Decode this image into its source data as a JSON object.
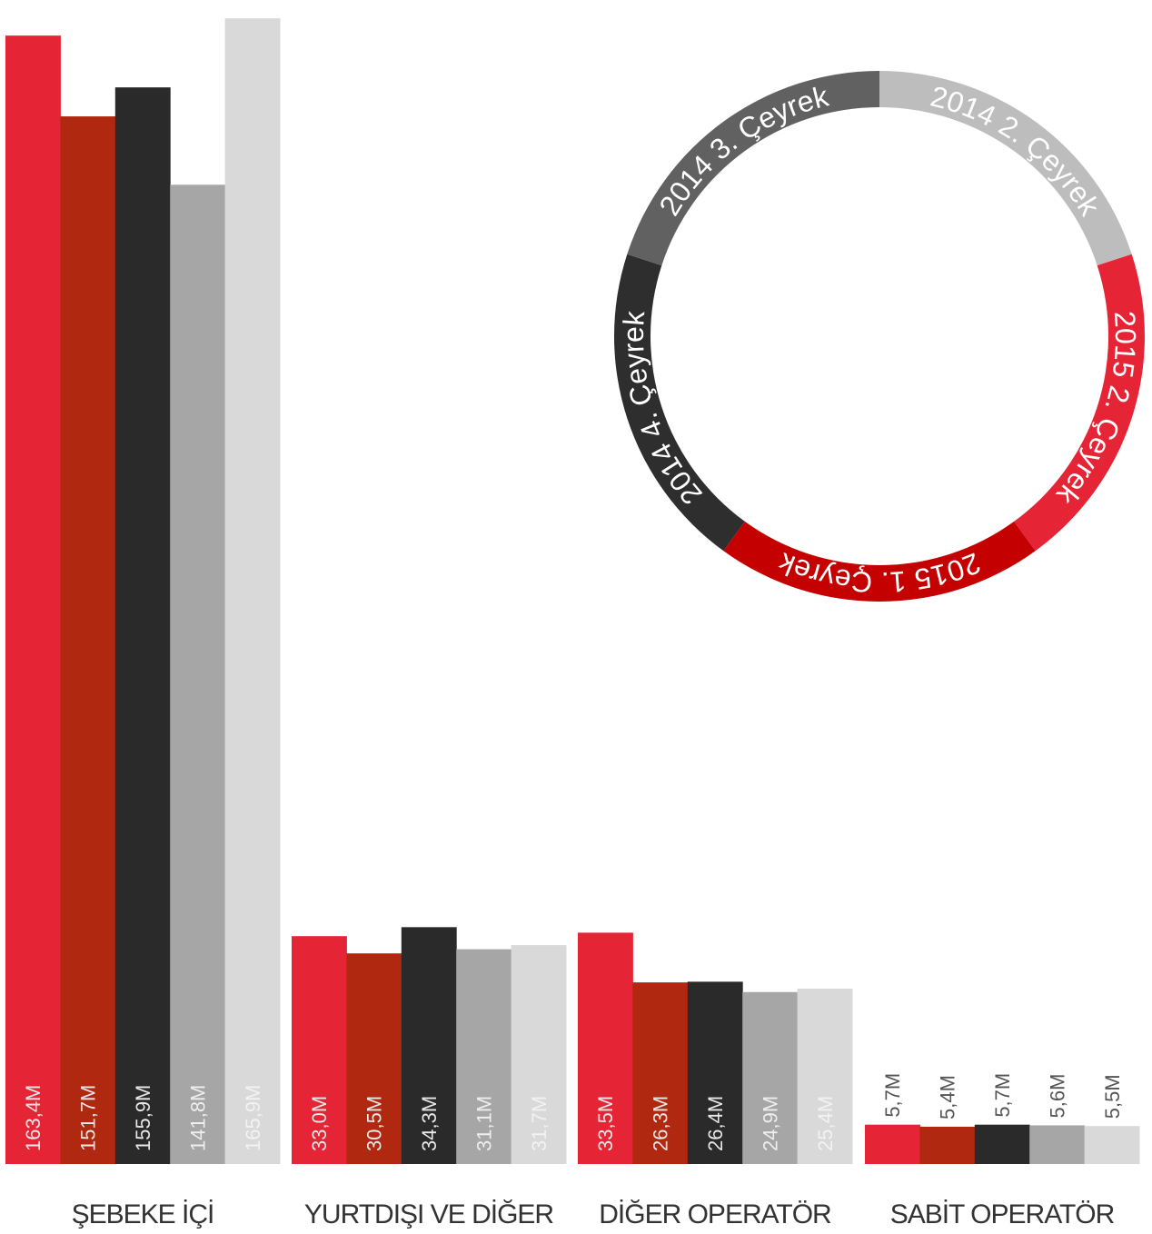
{
  "chart_data": [
    {
      "type": "bar",
      "categories": [
        "ŞEBEKE İÇİ",
        "YURTDIŞI VE DİĞER",
        "DİĞER OPERATÖR",
        "SABİT OPERATÖR"
      ],
      "series": [
        {
          "name": "2015 2. Çeyrek",
          "color": "#e52535",
          "values": [
            163.4,
            33.0,
            33.5,
            5.7
          ],
          "labels": [
            "163,4M",
            "33,0M",
            "33,5M",
            "5,7M"
          ]
        },
        {
          "name": "2015 1. Çeyrek",
          "color": "#b0280f",
          "values": [
            151.7,
            30.5,
            26.3,
            5.4
          ],
          "labels": [
            "151,7M",
            "30,5M",
            "26,3M",
            "5,4M"
          ]
        },
        {
          "name": "2014 4. Çeyrek",
          "color": "#2a2a2a",
          "values": [
            155.9,
            34.3,
            26.4,
            5.7
          ],
          "labels": [
            "155,9M",
            "34,3M",
            "26,4M",
            "5,7M"
          ]
        },
        {
          "name": "2014 3. Çeyrek",
          "color": "#a6a6a6",
          "values": [
            141.8,
            31.1,
            24.9,
            5.6
          ],
          "labels": [
            "141,8M",
            "31,1M",
            "24,9M",
            "5,6M"
          ]
        },
        {
          "name": "2014 2. Çeyrek",
          "color": "#d9d9d9",
          "values": [
            165.9,
            31.7,
            25.4,
            5.5
          ],
          "labels": [
            "165,9M",
            "31,7M",
            "25,4M",
            "5,5M"
          ]
        }
      ],
      "grid": false,
      "legend": "ring (top-right)"
    },
    {
      "type": "pie",
      "variant": "ring-legend",
      "slices": [
        {
          "label": "2014 2. Çeyrek",
          "value": 20,
          "color": "#bdbdbd"
        },
        {
          "label": "2015 2. Çeyrek",
          "value": 20,
          "color": "#e52535"
        },
        {
          "label": "2015 1. Çeyrek",
          "value": 20,
          "color": "#c40000"
        },
        {
          "label": "2014 4. Çeyrek",
          "value": 20,
          "color": "#2e2e2e"
        },
        {
          "label": "2014 3. Çeyrek",
          "value": 20,
          "color": "#616161"
        }
      ]
    }
  ]
}
